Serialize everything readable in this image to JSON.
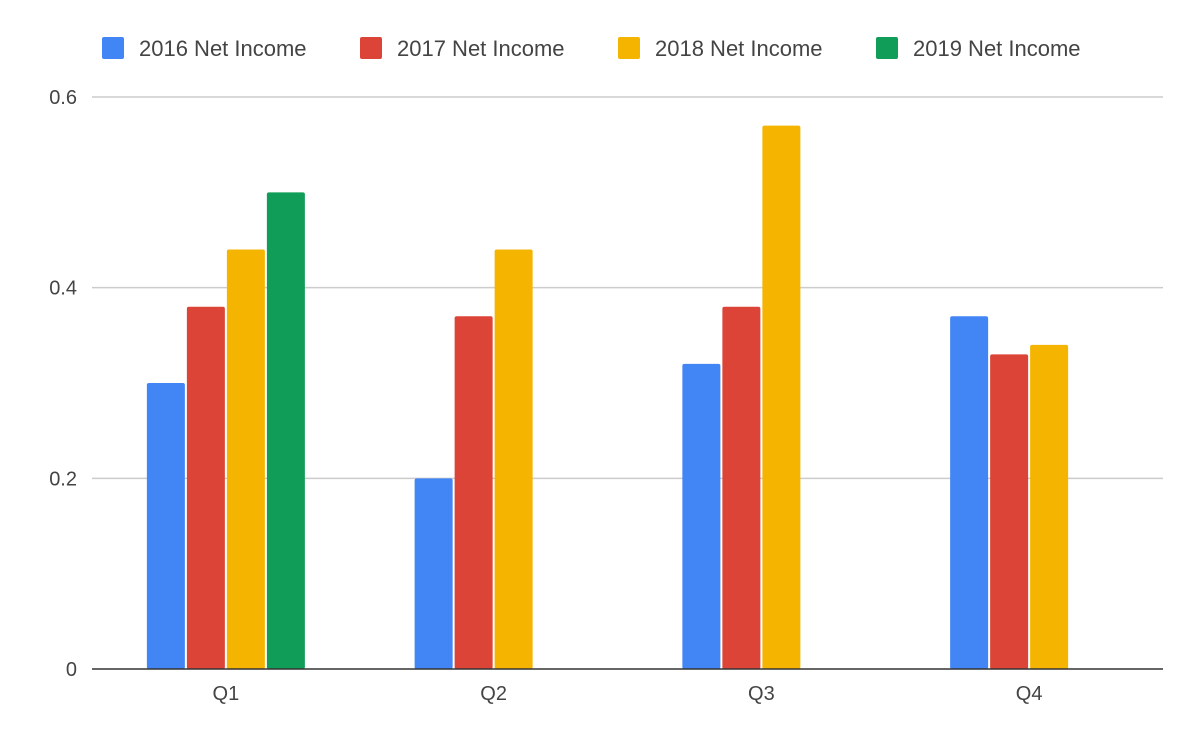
{
  "chart_data": {
    "type": "bar",
    "categories": [
      "Q1",
      "Q2",
      "Q3",
      "Q4"
    ],
    "series": [
      {
        "name": "2016 Net Income",
        "color": "#4285f4",
        "values": [
          0.3,
          0.2,
          0.32,
          0.37
        ]
      },
      {
        "name": "2017 Net Income",
        "color": "#db4437",
        "values": [
          0.38,
          0.37,
          0.38,
          0.33
        ]
      },
      {
        "name": "2018 Net Income",
        "color": "#f4b400",
        "values": [
          0.44,
          0.44,
          0.57,
          0.34
        ]
      },
      {
        "name": "2019 Net Income",
        "color": "#0f9d58",
        "values": [
          0.5,
          null,
          null,
          null
        ]
      }
    ],
    "yticks": [
      "0",
      "0.2",
      "0.4",
      "0.6"
    ],
    "ylim": [
      0,
      0.6
    ],
    "grid": true,
    "legend_position": "top"
  }
}
